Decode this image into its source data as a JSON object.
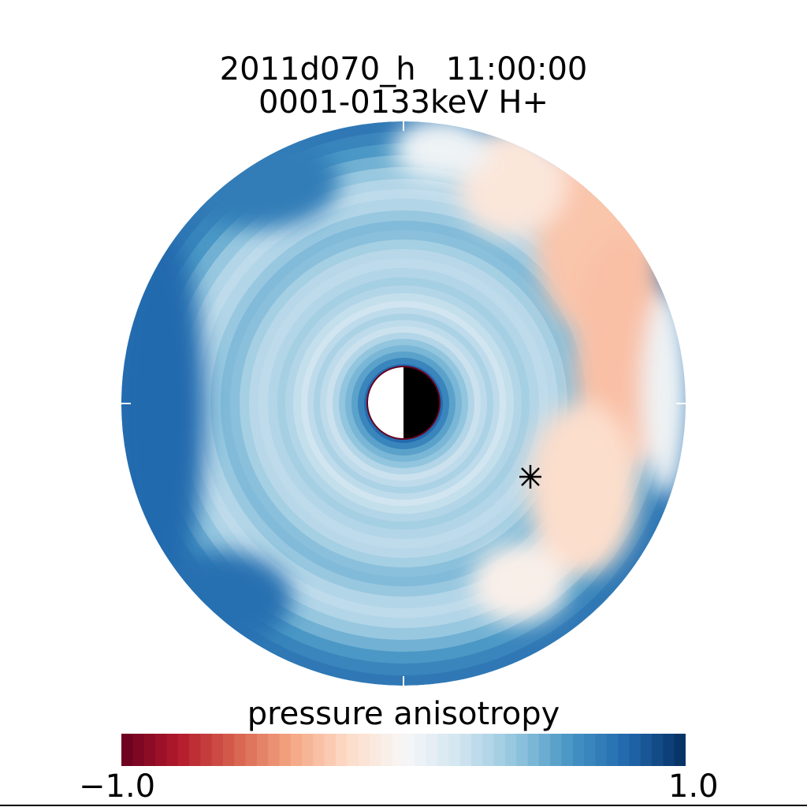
{
  "chart_data": {
    "type": "heatmap",
    "title_line1": "2011d070_h   11:00:00",
    "title_line2": "0001-0133keV H+",
    "colorbar": {
      "label": "pressure anisotropy",
      "min_label": "−1.0",
      "max_label": "1.0",
      "range": [
        -1.0,
        1.0
      ],
      "colormap": [
        "#67001f",
        "#b2182b",
        "#d6604d",
        "#f4a582",
        "#fddbc7",
        "#f7f7f7",
        "#d1e5f0",
        "#92c5de",
        "#4393c3",
        "#2166ac",
        "#053061"
      ]
    },
    "marker": {
      "symbol": "asterisk",
      "glyph": "✳"
    },
    "earth": {
      "day_color": "#ffffff",
      "night_color": "#000000",
      "outline_color": "#67001f"
    }
  }
}
